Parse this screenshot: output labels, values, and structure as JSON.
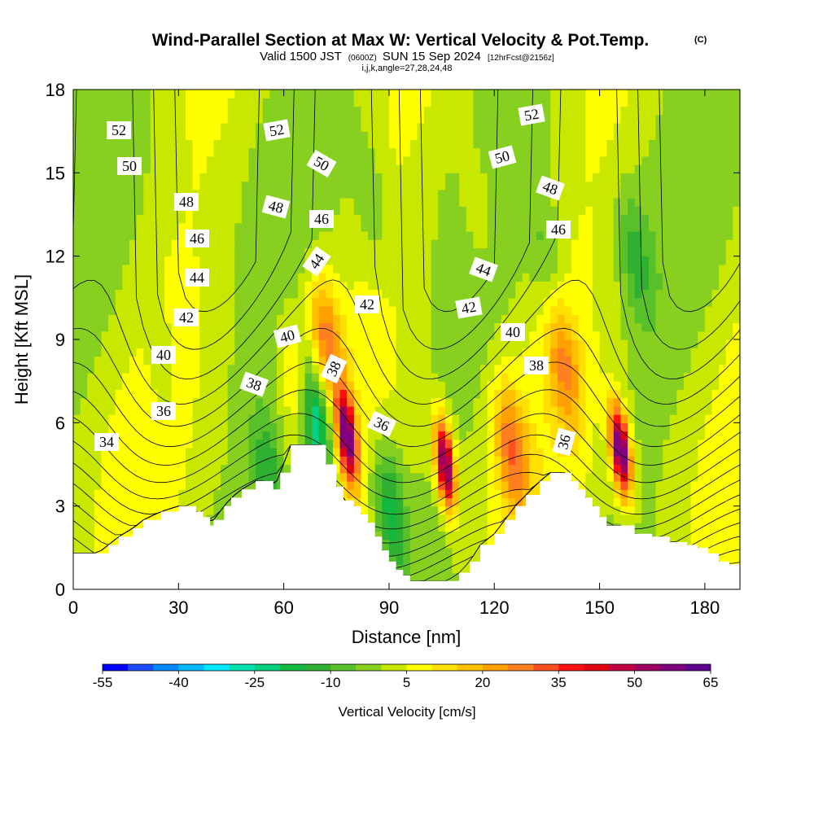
{
  "chart_data": {
    "type": "heatmap",
    "title": "Wind-Parallel Section at Max W: Vertical Velocity & Pot.Temp.",
    "title_mark": "(C)",
    "subtitle": {
      "prefix": "Valid 1500 JST",
      "utc": "(0600Z)",
      "date": "SUN 15 Sep 2024",
      "forecast": "[12hrFcst@2156z]"
    },
    "indices_label": "i,j,k,angle=27,28,24,48",
    "xlabel": "Distance [nm]",
    "ylabel": "Height [Kft MSL]",
    "xlim": [
      0,
      190
    ],
    "ylim": [
      0,
      18
    ],
    "x_ticks": [
      0,
      30,
      60,
      90,
      120,
      150,
      180
    ],
    "y_ticks": [
      0,
      3,
      6,
      9,
      12,
      15,
      18
    ],
    "colorbar": {
      "title": "Vertical Velocity [cm/s]",
      "tick_labels": [
        "-55",
        "-40",
        "-25",
        "-10",
        "5",
        "20",
        "35",
        "50",
        "65"
      ],
      "min": -55,
      "max": 65,
      "step": 5,
      "colors": [
        "#0000ff",
        "#1a4cff",
        "#0088ff",
        "#00b8ff",
        "#00e8ff",
        "#00e0b0",
        "#00d080",
        "#10b840",
        "#30b030",
        "#58c028",
        "#88d020",
        "#c8e800",
        "#ffff00",
        "#ffe000",
        "#ffc000",
        "#ffa000",
        "#ff8020",
        "#ff5020",
        "#ff1010",
        "#e00010",
        "#c00040",
        "#a00060",
        "#800080",
        "#600090"
      ]
    },
    "theta_label_values": [
      "34",
      "36",
      "38",
      "40",
      "42",
      "44",
      "46",
      "48",
      "50",
      "52"
    ],
    "terrain": {
      "x": [
        0,
        7,
        10,
        13,
        17,
        20,
        25,
        30,
        35,
        37,
        39,
        40,
        43,
        45,
        48,
        52,
        55,
        57,
        59,
        62,
        64,
        70,
        72,
        75,
        77,
        80,
        82,
        84,
        86,
        88,
        90,
        92,
        94,
        96,
        98,
        100,
        104,
        108,
        110,
        113,
        116,
        120,
        123,
        126,
        129,
        133,
        136,
        140,
        142,
        144,
        146,
        148,
        150,
        152,
        154,
        157,
        160,
        165,
        170,
        175,
        178,
        181,
        184,
        187,
        190
      ],
      "height": [
        1.3,
        1.3,
        1.6,
        1.9,
        2.2,
        2.5,
        2.8,
        3.0,
        2.8,
        2.6,
        2.3,
        2.5,
        3.0,
        3.3,
        3.6,
        3.9,
        3.9,
        3.6,
        4.2,
        5.2,
        5.2,
        5.2,
        4.5,
        3.7,
        3.2,
        3.0,
        2.7,
        2.4,
        1.9,
        1.4,
        1.0,
        0.7,
        0.5,
        0.3,
        0.3,
        0.3,
        0.3,
        0.3,
        0.6,
        1.0,
        1.6,
        2.0,
        2.5,
        3.0,
        3.4,
        3.9,
        4.2,
        4.2,
        3.9,
        3.6,
        3.3,
        3.0,
        2.6,
        2.3,
        2.3,
        2.3,
        2.0,
        1.9,
        1.7,
        1.6,
        1.5,
        1.3,
        1.0,
        0.9,
        0.7
      ]
    },
    "w_features": [
      {
        "x": 78,
        "z": 5.5,
        "w": 55
      },
      {
        "x": 106,
        "z": 4.5,
        "w": 60
      },
      {
        "x": 156,
        "z": 5.0,
        "w": 65
      },
      {
        "x": 69,
        "z": 6.0,
        "w": -35
      },
      {
        "x": 72,
        "z": 9.0,
        "w": 25
      },
      {
        "x": 64,
        "z": 7.5,
        "w": 15
      },
      {
        "x": 90,
        "z": 3.0,
        "w": -20
      },
      {
        "x": 56,
        "z": 4.0,
        "w": -15
      },
      {
        "x": 125,
        "z": 5.0,
        "w": 25
      },
      {
        "x": 140,
        "z": 8.0,
        "w": 20
      },
      {
        "x": 135,
        "z": 12.0,
        "w": -8
      },
      {
        "x": 160,
        "z": 12.0,
        "w": -12
      },
      {
        "x": 85,
        "z": 14.0,
        "w": -8
      },
      {
        "x": 115,
        "z": 14.0,
        "w": 8
      },
      {
        "x": 25,
        "z": 8.0,
        "w": -5
      }
    ]
  }
}
